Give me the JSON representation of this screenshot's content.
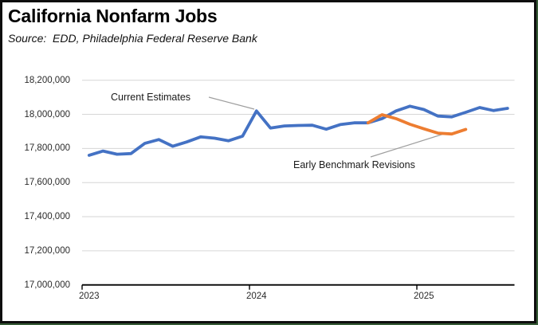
{
  "window": {
    "border_color": "#0e0e0e",
    "edge_accent_color": "#365b36",
    "background": "#ffffff"
  },
  "chart_data": {
    "type": "line",
    "title": "California Nonfarm Jobs",
    "source": "Source:  EDD, Philadelphia Federal Reserve Bank",
    "xlabel": "",
    "ylabel": "",
    "ylim": [
      17000000,
      18200000
    ],
    "grid": "horizontal",
    "grid_color": "#d6d6d6",
    "axis_color": "#000000",
    "legend_position": "none (labeled by callout annotations)",
    "y_ticks": [
      {
        "value": 18200000,
        "label": "18,200,000"
      },
      {
        "value": 18000000,
        "label": "18,000,000"
      },
      {
        "value": 17800000,
        "label": "17,800,000"
      },
      {
        "value": 17600000,
        "label": "17,600,000"
      },
      {
        "value": 17400000,
        "label": "17,400,000"
      },
      {
        "value": 17200000,
        "label": "17,200,000"
      },
      {
        "value": 17000000,
        "label": "17,000,000"
      }
    ],
    "x_ticks": [
      {
        "index": 0,
        "label": "2023"
      },
      {
        "index": 12,
        "label": "2024"
      },
      {
        "index": 24,
        "label": "2025"
      }
    ],
    "categories": [
      "2023-01",
      "2023-02",
      "2023-03",
      "2023-04",
      "2023-05",
      "2023-06",
      "2023-07",
      "2023-08",
      "2023-09",
      "2023-10",
      "2023-11",
      "2023-12",
      "2024-01",
      "2024-02",
      "2024-03",
      "2024-04",
      "2024-05",
      "2024-06",
      "2024-07",
      "2024-08",
      "2024-09",
      "2024-10",
      "2024-11",
      "2024-12",
      "2025-01",
      "2025-02",
      "2025-03",
      "2025-04",
      "2025-05",
      "2025-06",
      "2025-07"
    ],
    "series": [
      {
        "name": "Current Estimates",
        "color": "#4472C4",
        "start_index": 0,
        "values": [
          17760000,
          17785000,
          17766000,
          17770000,
          17830000,
          17852000,
          17813000,
          17838000,
          17868000,
          17860000,
          17845000,
          17872000,
          18020000,
          17920000,
          17932000,
          17935000,
          17936000,
          17913000,
          17940000,
          17950000,
          17950000,
          17975000,
          18020000,
          18048000,
          18028000,
          17990000,
          17985000,
          18012000,
          18040000,
          18022000,
          18035000
        ]
      },
      {
        "name": "Early Benchmark Revisions",
        "color": "#ED7D31",
        "start_index": 20,
        "values": [
          17950000,
          17998000,
          17975000,
          17942000,
          17915000,
          17890000,
          17885000,
          17912000
        ]
      }
    ],
    "annotations": [
      {
        "text": "Current Estimates",
        "leader": [
          [
            262,
            122
          ],
          [
            319,
            137
          ]
        ],
        "leader_color": "#9e9e9e"
      },
      {
        "text": "Early Benchmark Revisions",
        "leader": [
          [
            465,
            197
          ],
          [
            557,
            168
          ]
        ],
        "leader_color": "#9e9e9e"
      }
    ]
  }
}
